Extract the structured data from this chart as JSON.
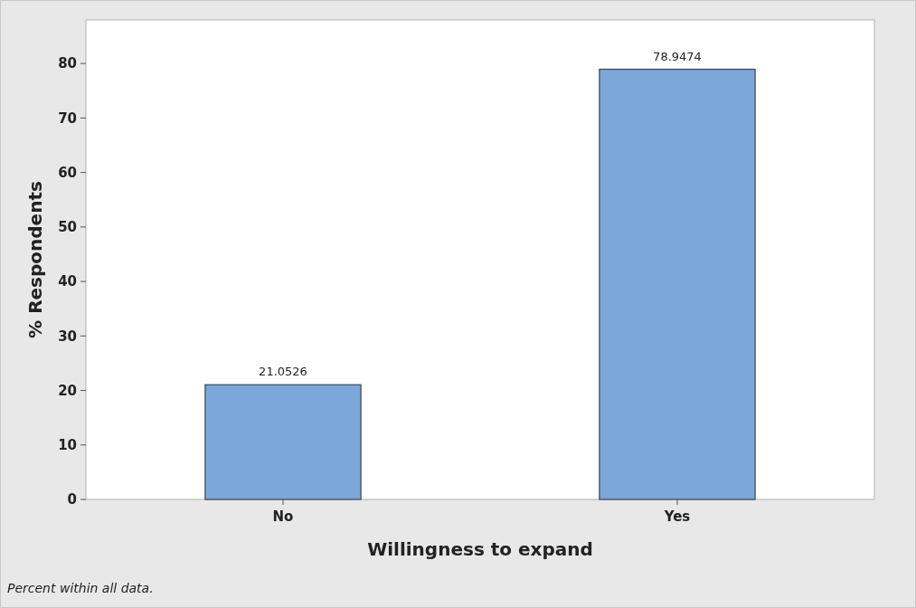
{
  "chart_data": {
    "type": "bar",
    "xlabel": "Willingness to expand",
    "ylabel": "% Respondents",
    "categories": [
      "No",
      "Yes"
    ],
    "values": [
      21.0526,
      78.9474
    ],
    "color": "#7ba7d9",
    "ylim": [
      0,
      88
    ],
    "yticks": [
      0,
      10,
      20,
      30,
      40,
      50,
      60,
      70,
      80
    ],
    "data_labels": true,
    "grid": false,
    "annotations": [
      "Percent within all data."
    ]
  }
}
